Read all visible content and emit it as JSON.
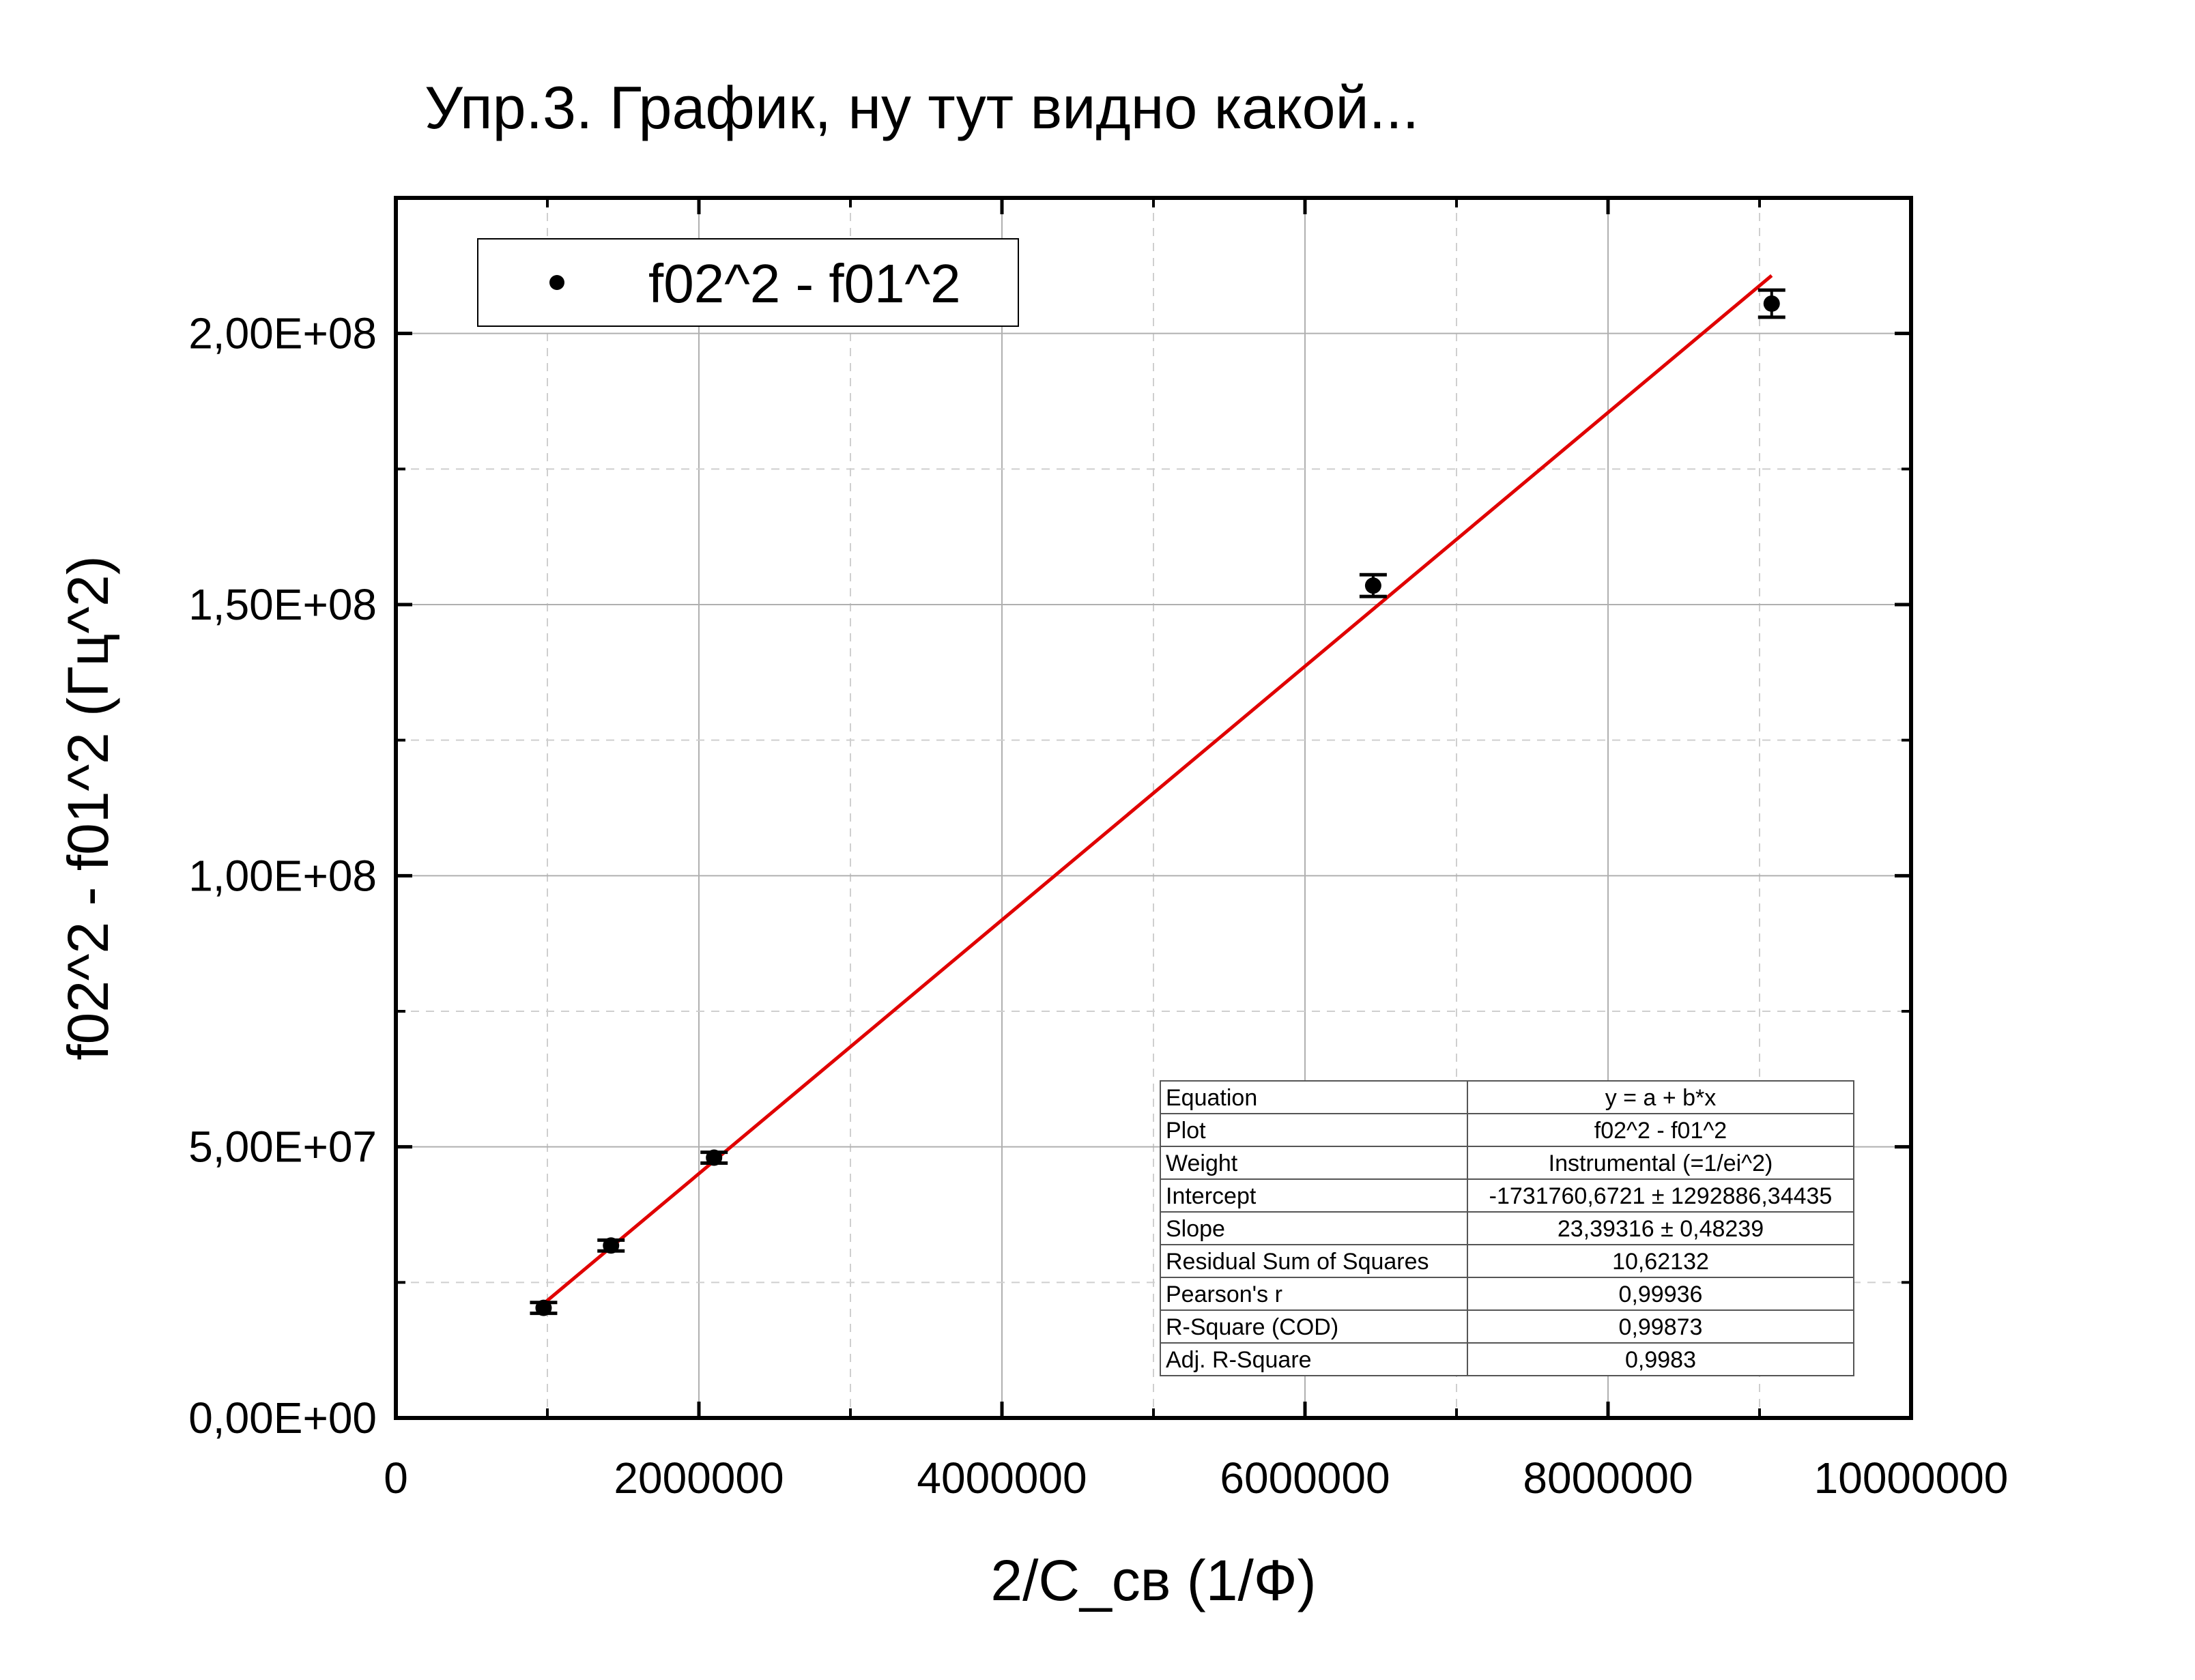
{
  "chart_data": {
    "type": "scatter",
    "title": "Упр.3. График, ну тут видно какой...",
    "xlabel": "2/C_св (1/Ф)",
    "ylabel": "f02^2 - f01^2 (Гц^2)",
    "xlim": [
      0,
      10000000
    ],
    "ylim": [
      0,
      225000000
    ],
    "x_ticks": [
      0,
      2000000,
      4000000,
      6000000,
      8000000,
      10000000
    ],
    "x_tick_labels": [
      "0",
      "2000000",
      "4000000",
      "6000000",
      "8000000",
      "10000000"
    ],
    "y_ticks": [
      0,
      50000000,
      100000000,
      150000000,
      200000000
    ],
    "y_tick_labels": [
      "0,00E+00",
      "5,00E+07",
      "1,00E+08",
      "1,50E+08",
      "2,00E+08"
    ],
    "grid": true,
    "legend_position": "top-left",
    "series": [
      {
        "name": "f02^2 - f01^2",
        "color": "#000000",
        "points": [
          {
            "x": 975000,
            "y": 20300000,
            "err": 1000000
          },
          {
            "x": 1420000,
            "y": 31800000,
            "err": 1000000
          },
          {
            "x": 2100000,
            "y": 48000000,
            "err": 1000000
          },
          {
            "x": 6450000,
            "y": 153500000,
            "err": 2000000
          },
          {
            "x": 9080000,
            "y": 205500000,
            "err": 2500000
          }
        ]
      }
    ],
    "fit": {
      "color": "#e00000",
      "intercept": -1731760.6721,
      "slope": 23.39316,
      "x_range": [
        975000,
        9080000
      ]
    },
    "fit_table": [
      {
        "label": "Equation",
        "value": "y = a + b*x"
      },
      {
        "label": "Plot",
        "value": "f02^2 - f01^2"
      },
      {
        "label": "Weight",
        "value": "Instrumental (=1/ei^2)"
      },
      {
        "label": "Intercept",
        "value": "-1731760,6721 ± 1292886,34435"
      },
      {
        "label": "Slope",
        "value": "23,39316 ± 0,48239"
      },
      {
        "label": "Residual Sum of Squares",
        "value": "10,62132"
      },
      {
        "label": "Pearson's r",
        "value": "0,99936"
      },
      {
        "label": "R-Square (COD)",
        "value": "0,99873"
      },
      {
        "label": "Adj. R-Square",
        "value": "0,9983"
      }
    ]
  }
}
